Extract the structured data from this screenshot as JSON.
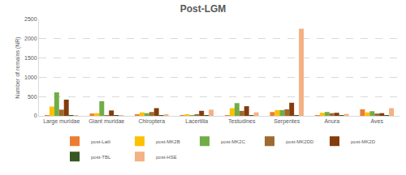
{
  "chart_data": {
    "type": "bar",
    "title": "Post-LGM",
    "y_label": "Number of remains (NR)",
    "categories": [
      "Large muridae",
      "Giant muridae",
      "Chiroptera",
      "Lacertilia",
      "Testudines",
      "Serpentes",
      "Anura",
      "Aves"
    ],
    "series": [
      {
        "name": "post-Laili",
        "color": "#ed7d31",
        "values": [
          5,
          60,
          40,
          20,
          5,
          100,
          20,
          170
        ]
      },
      {
        "name": "post-MK2B",
        "color": "#ffc000",
        "values": [
          240,
          70,
          90,
          30,
          200,
          150,
          80,
          90
        ]
      },
      {
        "name": "post-MK2C",
        "color": "#70ad47",
        "values": [
          610,
          380,
          70,
          20,
          330,
          150,
          100,
          120
        ]
      },
      {
        "name": "post-MK2DD",
        "color": "#9e6a2f",
        "values": [
          160,
          10,
          100,
          40,
          130,
          170,
          70,
          60
        ]
      },
      {
        "name": "post-MK2D",
        "color": "#843c0c",
        "values": [
          420,
          140,
          200,
          130,
          250,
          340,
          80,
          70
        ]
      },
      {
        "name": "post-TBL",
        "color": "#375623",
        "values": [
          10,
          5,
          5,
          10,
          20,
          20,
          5,
          5
        ]
      },
      {
        "name": "post-HSE",
        "color": "#f4b183",
        "values": [
          10,
          5,
          40,
          160,
          90,
          2260,
          50,
          200
        ]
      }
    ],
    "ylim": [
      0,
      2500
    ],
    "yticks": [
      0,
      500,
      1000,
      1500,
      2000,
      2500
    ],
    "grid": true,
    "legend": "bottom"
  }
}
